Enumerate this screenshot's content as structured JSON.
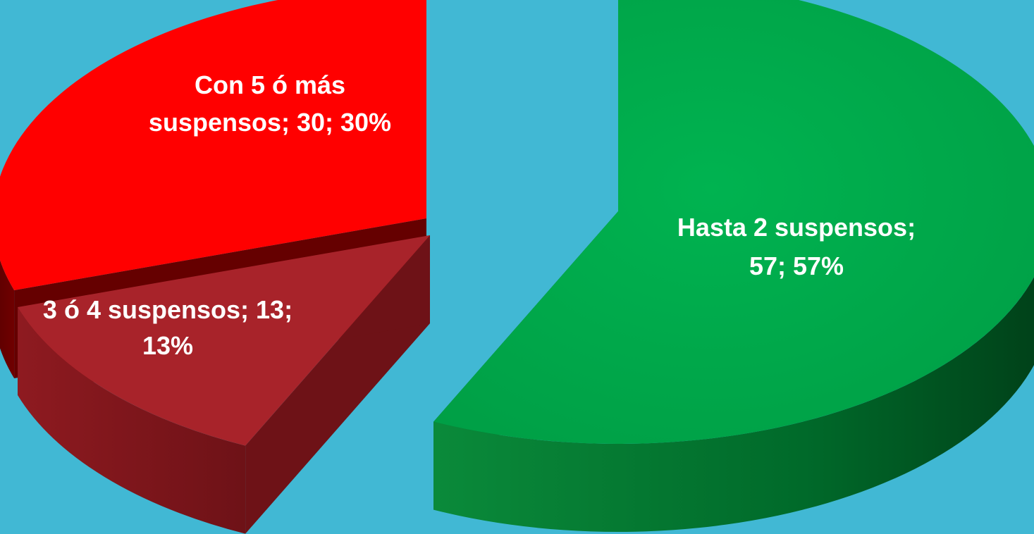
{
  "background_color": "#41B8D4",
  "chart_data": {
    "type": "pie",
    "style": "3d-exploded",
    "title": "",
    "legend": "none",
    "slices": [
      {
        "category": "Hasta 2 suspensos",
        "value": 57,
        "percent": 57,
        "label_line1": "Hasta 2 suspensos;",
        "label_line2": "57; 57%",
        "color": "#00AC4C",
        "side_color": "#006A2A"
      },
      {
        "category": "3 ó 4 suspensos",
        "value": 13,
        "percent": 13,
        "label_line1": "3 ó 4 suspensos; 13;",
        "label_line2": "13%",
        "color": "#A8232A",
        "side_color": "#6E1217"
      },
      {
        "category": "Con 5 ó más suspensos",
        "value": 30,
        "percent": 30,
        "label_line1": "Con 5 ó más",
        "label_line2": "suspensos; 30; 30%",
        "color": "#FF0000",
        "side_color": "#650000"
      }
    ]
  }
}
